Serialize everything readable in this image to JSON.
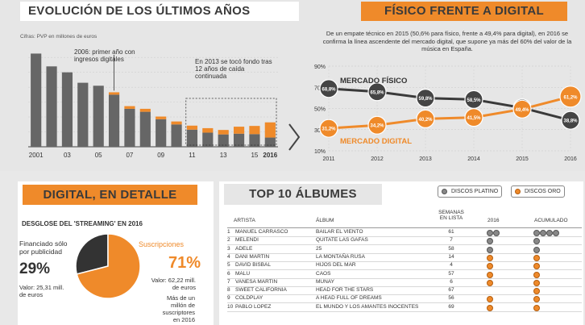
{
  "colors": {
    "orange": "#ef8a2a",
    "dark_bar": "#666666",
    "line_dark": "#3a3a3a",
    "bg": "#e6e6e6"
  },
  "sections": {
    "evolucion": {
      "title": "EVOLUCIÓN DE LOS ÚLTIMOS AÑOS",
      "subtitle": "Cifras: PVP en millones de euros",
      "note_2006": "2006: primer año con ingresos digitales",
      "note_2013": "En 2013 se tocó fondo tras 12 años de caída continuada"
    },
    "fisico": {
      "title": "FÍSICO FRENTE A DIGITAL",
      "intro": "De un empate técnico en 2015 (50,6% para físico, frente a 49,4% para digital), en 2016 se confirma la línea ascendente del mercado digital, que supone ya más del 60% del valor de la música en España.",
      "label_fisico": "MERCADO FÍSICO",
      "label_digital": "MERCADO DIGITAL"
    },
    "digital": {
      "title": "DIGITAL, EN DETALLE",
      "subtitle": "DESGLOSE DEL 'STREAMING' EN 2016",
      "ads_label": "Financiado sólo por publicidad",
      "ads_pct": "29%",
      "ads_value": "Valor: 25,31 mill. de euros",
      "subs_label": "Suscripciones",
      "subs_pct": "71%",
      "subs_value": "Valor: 62,22 mill. de euros",
      "subs_note": "Más de un millón de suscriptores en 2016"
    },
    "top10": {
      "title": "TOP 10 ÁLBUMES",
      "btn_platino": "DISCOS PLATINO",
      "btn_oro": "DISCOS ORO",
      "col_artista": "ARTISTA",
      "col_album": "ÁLBUM",
      "col_semanas": "SEMANAS EN LISTA",
      "col_2016": "2016",
      "col_acumulado": "ACUMULADO",
      "rows": [
        {
          "n": "1",
          "artista": "MANUEL CARRASCO",
          "album": "BAILAR EL VIENTO",
          "semanas": "61"
        },
        {
          "n": "2",
          "artista": "MELENDI",
          "album": "QUITATE LAS GAFAS",
          "semanas": "7"
        },
        {
          "n": "3",
          "artista": "ADELE",
          "album": "25",
          "semanas": "58"
        },
        {
          "n": "4",
          "artista": "DANI MARTIN",
          "album": "LA MONTAÑA RUSA",
          "semanas": "14"
        },
        {
          "n": "5",
          "artista": "DAVID BISBAL",
          "album": "HIJOS DEL MAR",
          "semanas": "4"
        },
        {
          "n": "6",
          "artista": "MALU",
          "album": "CAOS",
          "semanas": "57"
        },
        {
          "n": "7",
          "artista": "VANESA MARTIN",
          "album": "MUNAY",
          "semanas": "6"
        },
        {
          "n": "8",
          "artista": "SWEET CALIFORNIA",
          "album": "HEAD FOR THE STARS",
          "semanas": "67"
        },
        {
          "n": "9",
          "artista": "COLDPLAY",
          "album": "A HEAD FULL OF DREAMS",
          "semanas": "56"
        },
        {
          "n": "10",
          "artista": "PABLO LOPEZ",
          "album": "EL MUNDO Y LOS AMANTES INOCENTES",
          "semanas": "69"
        }
      ]
    }
  },
  "chart_data": [
    {
      "type": "bar",
      "title": "EVOLUCIÓN DE LOS ÚLTIMOS AÑOS",
      "ylabel": "Cifras: PVP en millones de euros",
      "categories": [
        "2001",
        "2002",
        "2003",
        "2004",
        "2005",
        "2006",
        "2007",
        "2008",
        "2009",
        "2010",
        "2011",
        "2012",
        "2013",
        "2014",
        "2015",
        "2016"
      ],
      "x_tick_labels": [
        "2001",
        "",
        "03",
        "",
        "05",
        "",
        "07",
        "",
        "09",
        "",
        "11",
        "",
        "13",
        "",
        "15",
        "2016"
      ],
      "series": [
        {
          "name": "Físico",
          "values": [
            626,
            540,
            500,
            430,
            410,
            350,
            255,
            235,
            185,
            150,
            115,
            95,
            83,
            88,
            85,
            62
          ]
        },
        {
          "name": "Digital",
          "values": [
            0,
            0,
            0,
            0,
            0,
            16,
            18,
            20,
            18,
            20,
            27,
            30,
            30,
            47,
            55,
            102
          ]
        }
      ],
      "ylim": [
        0,
        650
      ]
    },
    {
      "type": "line",
      "title": "FÍSICO FRENTE A DIGITAL",
      "x": [
        "2011",
        "2012",
        "2013",
        "2014",
        "2015",
        "2016"
      ],
      "y_ticks": [
        "10%",
        "30%",
        "50%",
        "70%",
        "90%"
      ],
      "ylim": [
        10,
        90
      ],
      "series": [
        {
          "name": "MERCADO FÍSICO",
          "values": [
            68.8,
            65.8,
            59.8,
            58.5,
            50.6,
            38.8
          ],
          "labels": [
            "68,8%",
            "65,8%",
            "59,8%",
            "58,5%",
            "50,6%",
            "38,8%"
          ]
        },
        {
          "name": "MERCADO DIGITAL",
          "values": [
            31.2,
            34.2,
            40.2,
            41.5,
            49.4,
            61.2
          ],
          "labels": [
            "31,2%",
            "34,2%",
            "40,2%",
            "41,5%",
            "49,4%",
            "61,2%"
          ]
        }
      ]
    },
    {
      "type": "pie",
      "title": "DESGLOSE DEL 'STREAMING' EN 2016",
      "labels": [
        "Financiado sólo por publicidad",
        "Suscripciones"
      ],
      "values": [
        29,
        71
      ],
      "colors": [
        "#333333",
        "#ef8a2a"
      ]
    }
  ]
}
